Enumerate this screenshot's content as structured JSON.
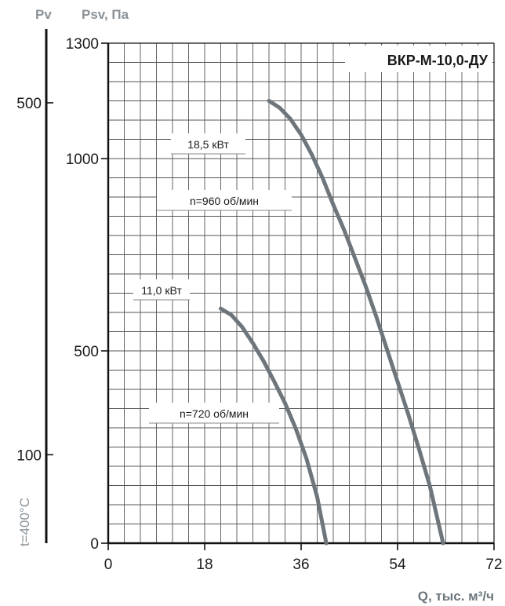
{
  "chart_data": {
    "type": "line",
    "title": "ВКР-М-10,0-ДУ",
    "xlabel": "Q, тыс. м³/ч",
    "ylabel": "Psv, Па",
    "ylabel_secondary": "Pv",
    "side_label": "t=400°C",
    "xlim": [
      0,
      72
    ],
    "ylim": [
      0,
      1300
    ],
    "x_ticks": [
      "0",
      "18",
      "36",
      "54",
      "72"
    ],
    "x_tick_values": [
      0,
      18,
      36,
      54,
      72
    ],
    "y_ticks": [
      "0",
      "500",
      "1000",
      "1300"
    ],
    "y_tick_values": [
      0,
      500,
      1000,
      1300
    ],
    "pv_ticks": [
      "100",
      "500"
    ],
    "pv_tick_psv": [
      230,
      1145
    ],
    "grid": true,
    "series": [
      {
        "name": "n=960 об/мин",
        "power": "18,5 кВт",
        "color": "#6e767c",
        "x": [
          30,
          32,
          34,
          36,
          38,
          40,
          42,
          44,
          46,
          48,
          50,
          52,
          54,
          56,
          58,
          60,
          62.5
        ],
        "y": [
          1150,
          1132,
          1103,
          1062,
          1010,
          950,
          880,
          815,
          743,
          670,
          590,
          505,
          420,
          335,
          245,
          150,
          0
        ]
      },
      {
        "name": "n=720 об/мин",
        "power": "11,0 кВт",
        "color": "#6e767c",
        "x": [
          21,
          23,
          25,
          27,
          29,
          31,
          33,
          35,
          37,
          39,
          40.7
        ],
        "y": [
          610,
          593,
          562,
          520,
          473,
          420,
          364,
          298,
          220,
          120,
          0
        ]
      }
    ]
  }
}
